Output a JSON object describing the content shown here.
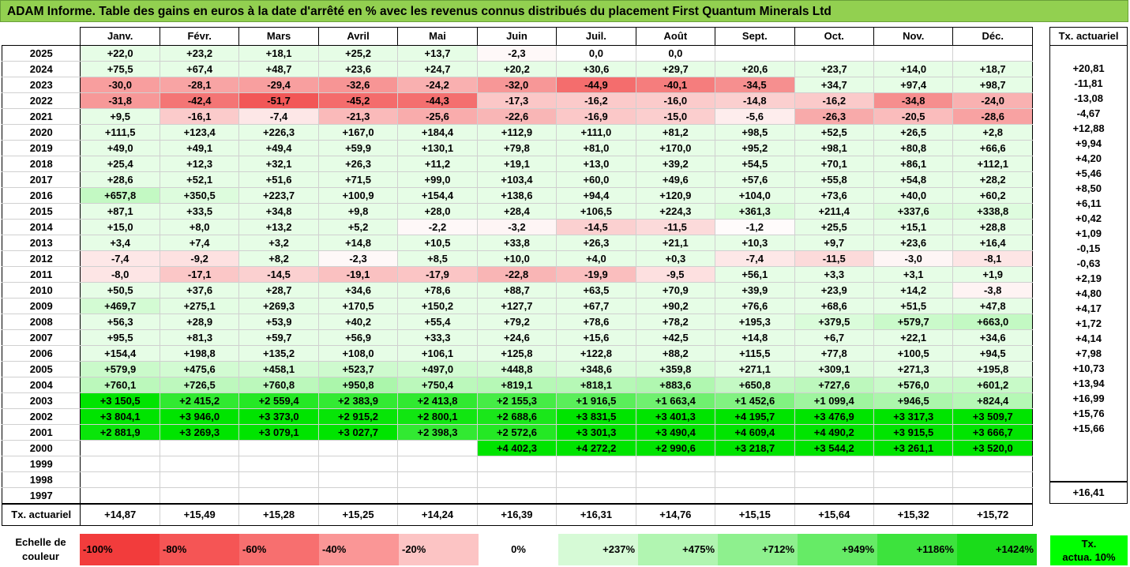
{
  "title": "ADAM Informe. Table des gains en euros à la date d'arrêté en % avec les revenus connus distribués du placement First Quantum Minerals Ltd",
  "months": [
    "Janv.",
    "Févr.",
    "Mars",
    "Avril",
    "Mai",
    "Juin",
    "Juil.",
    "Août",
    "Sept.",
    "Oct.",
    "Nov.",
    "Déc."
  ],
  "side_header": "Tx. actuariel",
  "rows": [
    {
      "year": "2025",
      "v": [
        "+22,0",
        "+23,2",
        "+18,1",
        "+25,2",
        "+13,7",
        "-2,3",
        "0,0",
        "0,0",
        "",
        "",
        "",
        ""
      ],
      "tx": ""
    },
    {
      "year": "2024",
      "v": [
        "+75,5",
        "+67,4",
        "+48,7",
        "+23,6",
        "+24,7",
        "+20,2",
        "+30,6",
        "+29,7",
        "+20,6",
        "+23,7",
        "+14,0",
        "+18,7"
      ],
      "tx": "+20,81"
    },
    {
      "year": "2023",
      "v": [
        "-30,0",
        "-28,1",
        "-29,4",
        "-32,6",
        "-24,2",
        "-32,0",
        "-44,9",
        "-40,1",
        "-34,5",
        "+34,7",
        "+97,4",
        "+98,7"
      ],
      "tx": "-11,81"
    },
    {
      "year": "2022",
      "v": [
        "-31,8",
        "-42,4",
        "-51,7",
        "-45,2",
        "-44,3",
        "-17,3",
        "-16,2",
        "-16,0",
        "-14,8",
        "-16,2",
        "-34,8",
        "-24,0"
      ],
      "tx": "-13,08"
    },
    {
      "year": "2021",
      "v": [
        "+9,5",
        "-16,1",
        "-7,4",
        "-21,3",
        "-25,6",
        "-22,6",
        "-16,9",
        "-15,0",
        "-5,6",
        "-26,3",
        "-20,5",
        "-28,6"
      ],
      "tx": "-4,67"
    },
    {
      "year": "2020",
      "v": [
        "+111,5",
        "+123,4",
        "+226,3",
        "+167,0",
        "+184,4",
        "+112,9",
        "+111,0",
        "+81,2",
        "+98,5",
        "+52,5",
        "+26,5",
        "+2,8"
      ],
      "tx": "+12,88"
    },
    {
      "year": "2019",
      "v": [
        "+49,0",
        "+49,1",
        "+49,4",
        "+59,9",
        "+130,1",
        "+79,8",
        "+81,0",
        "+170,0",
        "+95,2",
        "+98,1",
        "+80,8",
        "+66,6"
      ],
      "tx": "+9,94"
    },
    {
      "year": "2018",
      "v": [
        "+25,4",
        "+12,3",
        "+32,1",
        "+26,3",
        "+11,2",
        "+19,1",
        "+13,0",
        "+39,2",
        "+54,5",
        "+70,1",
        "+86,1",
        "+112,1"
      ],
      "tx": "+4,20"
    },
    {
      "year": "2017",
      "v": [
        "+28,6",
        "+52,1",
        "+51,6",
        "+71,5",
        "+99,0",
        "+103,4",
        "+60,0",
        "+49,6",
        "+57,6",
        "+55,8",
        "+54,8",
        "+28,2"
      ],
      "tx": "+5,46"
    },
    {
      "year": "2016",
      "v": [
        "+657,8",
        "+350,5",
        "+223,7",
        "+100,9",
        "+154,4",
        "+138,6",
        "+94,4",
        "+120,9",
        "+104,0",
        "+73,6",
        "+40,0",
        "+60,2"
      ],
      "tx": "+8,50"
    },
    {
      "year": "2015",
      "v": [
        "+87,1",
        "+33,5",
        "+34,8",
        "+9,8",
        "+28,0",
        "+28,4",
        "+106,5",
        "+224,3",
        "+361,3",
        "+211,4",
        "+337,6",
        "+338,8"
      ],
      "tx": "+6,11"
    },
    {
      "year": "2014",
      "v": [
        "+15,0",
        "+8,0",
        "+13,2",
        "+5,2",
        "-2,2",
        "-3,2",
        "-14,5",
        "-11,5",
        "-1,2",
        "+25,5",
        "+15,1",
        "+28,8"
      ],
      "tx": "+0,42"
    },
    {
      "year": "2013",
      "v": [
        "+3,4",
        "+7,4",
        "+3,2",
        "+14,8",
        "+10,5",
        "+33,8",
        "+26,3",
        "+21,1",
        "+10,3",
        "+9,7",
        "+23,6",
        "+16,4"
      ],
      "tx": "+1,09"
    },
    {
      "year": "2012",
      "v": [
        "-7,4",
        "-9,2",
        "+8,2",
        "-2,3",
        "+8,5",
        "+10,0",
        "+4,0",
        "+0,3",
        "-7,4",
        "-11,5",
        "-3,0",
        "-8,1"
      ],
      "tx": "-0,15"
    },
    {
      "year": "2011",
      "v": [
        "-8,0",
        "-17,1",
        "-14,5",
        "-19,1",
        "-17,9",
        "-22,8",
        "-19,9",
        "-9,5",
        "+56,1",
        "+3,3",
        "+3,1",
        "+1,9"
      ],
      "tx": "-0,63"
    },
    {
      "year": "2010",
      "v": [
        "+50,5",
        "+37,6",
        "+28,7",
        "+34,6",
        "+78,6",
        "+88,7",
        "+63,5",
        "+70,9",
        "+39,9",
        "+23,9",
        "+14,2",
        "-3,8"
      ],
      "tx": "+2,19"
    },
    {
      "year": "2009",
      "v": [
        "+469,7",
        "+275,1",
        "+269,3",
        "+170,5",
        "+150,2",
        "+127,7",
        "+67,7",
        "+90,2",
        "+76,6",
        "+68,6",
        "+51,5",
        "+47,8"
      ],
      "tx": "+4,80"
    },
    {
      "year": "2008",
      "v": [
        "+56,3",
        "+28,9",
        "+53,9",
        "+40,2",
        "+55,4",
        "+79,2",
        "+78,6",
        "+78,2",
        "+195,3",
        "+379,5",
        "+579,7",
        "+663,0"
      ],
      "tx": "+4,17"
    },
    {
      "year": "2007",
      "v": [
        "+95,5",
        "+81,3",
        "+59,7",
        "+56,9",
        "+33,3",
        "+24,6",
        "+15,6",
        "+42,5",
        "+14,8",
        "+6,7",
        "+22,1",
        "+34,6"
      ],
      "tx": "+1,72"
    },
    {
      "year": "2006",
      "v": [
        "+154,4",
        "+198,8",
        "+135,2",
        "+108,0",
        "+106,1",
        "+125,8",
        "+122,8",
        "+88,2",
        "+115,5",
        "+77,8",
        "+100,5",
        "+94,5"
      ],
      "tx": "+4,14"
    },
    {
      "year": "2005",
      "v": [
        "+579,9",
        "+475,6",
        "+458,1",
        "+523,7",
        "+497,0",
        "+448,8",
        "+348,6",
        "+359,8",
        "+271,1",
        "+309,1",
        "+271,3",
        "+195,8"
      ],
      "tx": "+7,98"
    },
    {
      "year": "2004",
      "v": [
        "+760,1",
        "+726,5",
        "+760,8",
        "+950,8",
        "+750,4",
        "+819,1",
        "+818,1",
        "+883,6",
        "+650,8",
        "+727,6",
        "+576,0",
        "+601,2"
      ],
      "tx": "+10,73"
    },
    {
      "year": "2003",
      "v": [
        "+3 150,5",
        "+2 415,2",
        "+2 559,4",
        "+2 383,9",
        "+2 413,8",
        "+2 155,3",
        "+1 916,5",
        "+1 663,4",
        "+1 452,6",
        "+1 099,4",
        "+946,5",
        "+824,4"
      ],
      "tx": "+13,94"
    },
    {
      "year": "2002",
      "v": [
        "+3 804,1",
        "+3 946,0",
        "+3 373,0",
        "+2 915,2",
        "+2 800,1",
        "+2 688,6",
        "+3 831,5",
        "+3 401,3",
        "+4 195,7",
        "+3 476,9",
        "+3 317,3",
        "+3 509,7"
      ],
      "tx": "+16,99"
    },
    {
      "year": "2001",
      "v": [
        "+2 881,9",
        "+3 269,3",
        "+3 079,1",
        "+3 027,7",
        "+2 398,3",
        "+2 572,6",
        "+3 301,3",
        "+3 490,4",
        "+4 609,4",
        "+4 490,2",
        "+3 915,5",
        "+3 666,7"
      ],
      "tx": "+15,76"
    },
    {
      "year": "2000",
      "v": [
        "",
        "",
        "",
        "",
        "",
        "+4 402,3",
        "+4 272,2",
        "+2 990,6",
        "+3 218,7",
        "+3 544,2",
        "+3 261,1",
        "+3 520,0"
      ],
      "tx": "+15,66"
    },
    {
      "year": "1999",
      "v": [
        "",
        "",
        "",
        "",
        "",
        "",
        "",
        "",
        "",
        "",
        "",
        ""
      ],
      "tx": ""
    },
    {
      "year": "1998",
      "v": [
        "",
        "",
        "",
        "",
        "",
        "",
        "",
        "",
        "",
        "",
        "",
        ""
      ],
      "tx": ""
    },
    {
      "year": "1997",
      "v": [
        "",
        "",
        "",
        "",
        "",
        "",
        "",
        "",
        "",
        "",
        "",
        ""
      ],
      "tx": ""
    }
  ],
  "footer": {
    "label": "Tx. actuariel",
    "values": [
      "+14,87",
      "+15,49",
      "+15,28",
      "+15,25",
      "+14,24",
      "+16,39",
      "+16,31",
      "+14,76",
      "+15,15",
      "+15,64",
      "+15,32",
      "+15,72"
    ],
    "total": "+16,41"
  },
  "scale": {
    "label_line1": "Echelle de",
    "label_line2": "couleur",
    "items": [
      {
        "text": "-100%",
        "color": "#f23c3c",
        "kind": "neg"
      },
      {
        "text": "-80%",
        "color": "#f55555",
        "kind": "neg"
      },
      {
        "text": "-60%",
        "color": "#f76f6f",
        "kind": "neg"
      },
      {
        "text": "-40%",
        "color": "#fa9696",
        "kind": "neg"
      },
      {
        "text": "-20%",
        "color": "#fcc4c4",
        "kind": "neg"
      },
      {
        "text": "0%",
        "color": "#ffffff",
        "kind": "zero"
      },
      {
        "text": "+237%",
        "color": "#d6fad6",
        "kind": "pos"
      },
      {
        "text": "+475%",
        "color": "#b1f5b1",
        "kind": "pos"
      },
      {
        "text": "+712%",
        "color": "#8ef08e",
        "kind": "pos"
      },
      {
        "text": "+949%",
        "color": "#66eb66",
        "kind": "pos"
      },
      {
        "text": "+1186%",
        "color": "#3de33d",
        "kind": "pos"
      },
      {
        "text": "+1424%",
        "color": "#1adc1a",
        "kind": "pos"
      }
    ],
    "tx_line1": "Tx.",
    "tx_line2": "actua. 10%",
    "tx_color": "#00ff00"
  }
}
